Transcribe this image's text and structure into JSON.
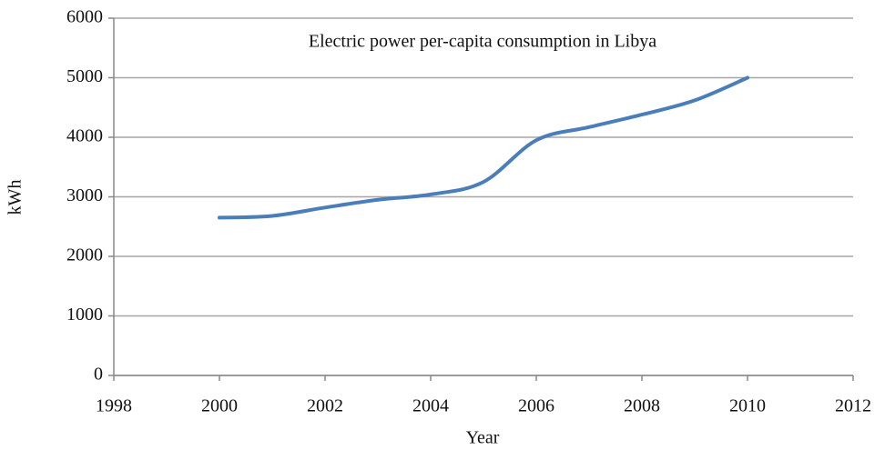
{
  "chart_data": {
    "type": "line",
    "title": "Electric power per-capita consumption in Libya",
    "x_label": "Year",
    "y_label": "kWh",
    "x": [
      2000,
      2001,
      2002,
      2003,
      2004,
      2005,
      2006,
      2007,
      2008,
      2009,
      2010
    ],
    "series": [
      {
        "name": "Electric power per-capita consumption",
        "color": "#4a7ebb",
        "values": [
          2650,
          2680,
          2820,
          2950,
          3040,
          3250,
          3950,
          4170,
          4380,
          4620,
          5000
        ]
      }
    ],
    "xlim": [
      1998,
      2012
    ],
    "xticks": [
      1998,
      2000,
      2002,
      2004,
      2006,
      2008,
      2010,
      2012
    ],
    "ylim": [
      0,
      6000
    ],
    "yticks": [
      0,
      1000,
      2000,
      3000,
      4000,
      5000,
      6000
    ],
    "grid": true
  }
}
